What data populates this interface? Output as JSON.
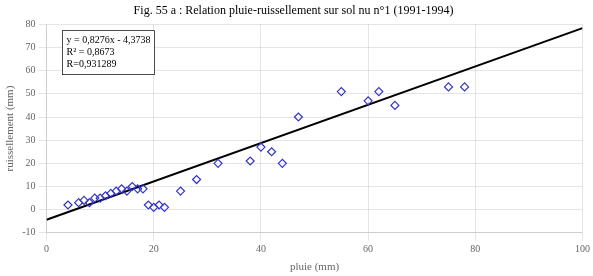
{
  "chart_data": {
    "type": "scatter",
    "title": "Fig. 55 a : Relation pluie-ruissellement sur sol nu n°1 (1991-1994)",
    "xlabel": "pluie (mm)",
    "ylabel": "ruissellement (mm)",
    "xlim": [
      0,
      100
    ],
    "ylim": [
      -10,
      80
    ],
    "xticks": [
      0,
      20,
      40,
      60,
      80,
      100
    ],
    "yticks": [
      -10,
      0,
      10,
      20,
      30,
      40,
      50,
      60,
      70,
      80
    ],
    "grid": true,
    "annotations": [
      "y = 0,8276x - 4,3738",
      "R² = 0,8673",
      "R=0,931289"
    ],
    "series": [
      {
        "type": "scatter",
        "color": "#3333cc",
        "marker": "diamond",
        "x": [
          4,
          6,
          7,
          8,
          9,
          10,
          11,
          12,
          13,
          14,
          15,
          16,
          17,
          18,
          19,
          20,
          21,
          22,
          25,
          28,
          32,
          38,
          40,
          42,
          44,
          47,
          55,
          60,
          62,
          65,
          75,
          78
        ],
        "values": [
          2,
          3,
          4,
          3,
          5,
          5,
          6,
          7,
          8,
          9,
          8,
          10,
          9,
          9,
          2,
          1,
          2,
          1,
          8,
          13,
          20,
          21,
          27,
          25,
          20,
          40,
          51,
          47,
          51,
          45,
          53,
          53
        ]
      },
      {
        "type": "line",
        "color": "black",
        "line_style": "solid",
        "x": [
          0,
          100
        ],
        "values": [
          -4.3738,
          78.3862
        ]
      }
    ]
  }
}
